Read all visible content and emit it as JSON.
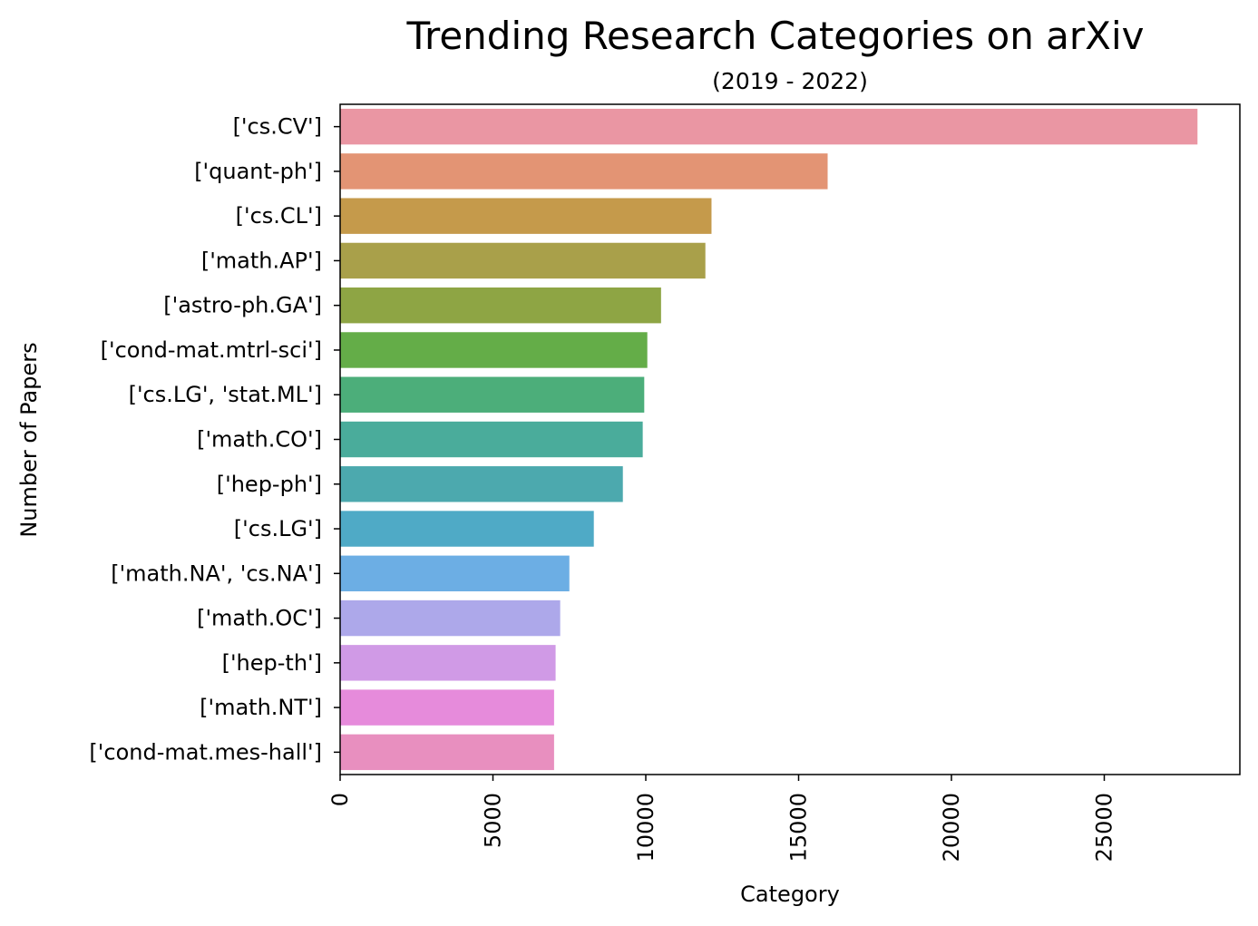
{
  "chart_data": {
    "type": "bar",
    "orientation": "horizontal",
    "title": "Trending Research Categories on arXiv",
    "subtitle": "(2019 - 2022)",
    "xlabel": "Category",
    "ylabel": "Number of Papers",
    "xlim": [
      0,
      29500
    ],
    "xticks": [
      0,
      5000,
      10000,
      15000,
      20000,
      25000
    ],
    "grid": false,
    "categories": [
      "['cs.CV']",
      "['quant-ph']",
      "['cs.CL']",
      "['math.AP']",
      "['astro-ph.GA']",
      "['cond-mat.mtrl-sci']",
      "['cs.LG', 'stat.ML']",
      "['math.CO']",
      "['hep-ph']",
      "['cs.LG']",
      "['math.NA', 'cs.NA']",
      "['math.OC']",
      "['hep-th']",
      "['math.NT']",
      "['cond-mat.mes-hall']"
    ],
    "values": [
      28050,
      15950,
      12150,
      11950,
      10500,
      10050,
      9950,
      9900,
      9250,
      8300,
      7500,
      7200,
      7050,
      7000,
      7000
    ],
    "colors": [
      "#ea96a3",
      "#e39474",
      "#c59a4b",
      "#a9a04a",
      "#8ea544",
      "#64ad48",
      "#4cae7a",
      "#4aac9b",
      "#4ca9ae",
      "#4faac6",
      "#6caee4",
      "#ada8ea",
      "#d09ae6",
      "#e68bdb",
      "#e88fbf"
    ]
  }
}
